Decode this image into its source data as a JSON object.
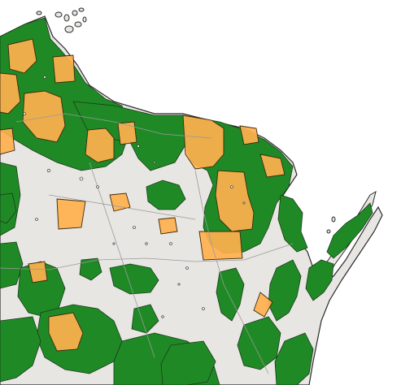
{
  "map": {
    "colors": {
      "water": "#ffffff",
      "land": "#e8e6e3",
      "forest": "#1f8a25",
      "protected_area": "#ffb04d",
      "protected_overlap": "#d3a33a",
      "outline": "#2a2a2a",
      "roads": "#9a9a9a"
    },
    "layers": [
      "water",
      "land",
      "forest",
      "protected-area",
      "roads",
      "boundary-outline"
    ],
    "labels": []
  }
}
